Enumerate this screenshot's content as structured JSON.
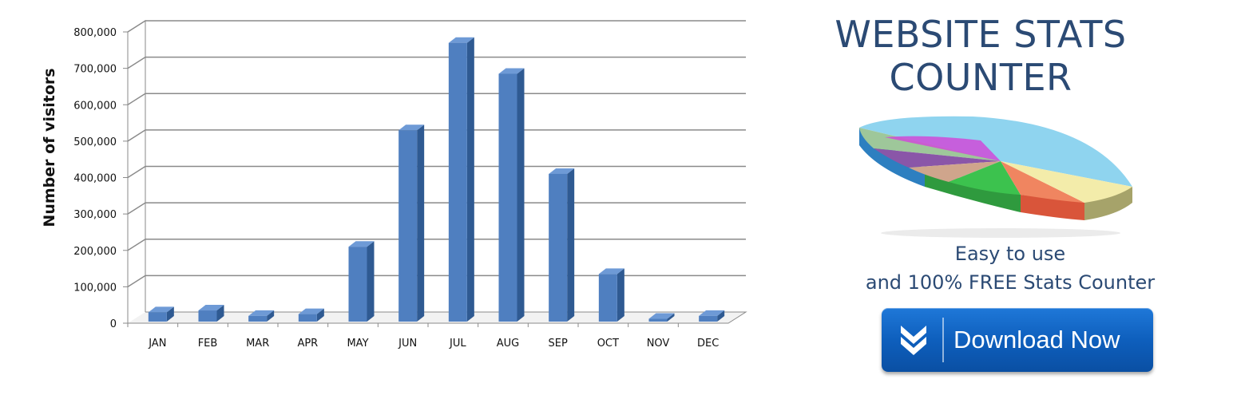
{
  "colors": {
    "bar_front": "#4f7fc0",
    "bar_side": "#2f5a92",
    "bar_top": "#6e9ad6",
    "grid": "#8a8a8a",
    "promo_text": "#2b4a74",
    "button": "#0e5fbd"
  },
  "chart_data": {
    "type": "bar",
    "style": "3d-column",
    "categories": [
      "JAN",
      "FEB",
      "MAR",
      "APR",
      "MAY",
      "JUN",
      "JUL",
      "AUG",
      "SEP",
      "OCT",
      "NOV",
      "DEC"
    ],
    "values": [
      30000,
      35000,
      20000,
      25000,
      210000,
      530000,
      770000,
      685000,
      410000,
      135000,
      12000,
      20000
    ],
    "ylabel": "Number of visitors",
    "xlabel": "",
    "ylim": [
      0,
      800000
    ],
    "yticks": [
      0,
      100000,
      200000,
      300000,
      400000,
      500000,
      600000,
      700000,
      800000
    ],
    "ytick_labels": [
      "0",
      "100,000",
      "200,000",
      "300,000",
      "400,000",
      "500,000",
      "600,000",
      "700,000",
      "800,000"
    ],
    "grid": true,
    "legend": "none"
  },
  "promo": {
    "title_line1": "WEBSITE STATS",
    "title_line2": "COUNTER",
    "tagline_line1": "Easy to use",
    "tagline_line2": "and 100% FREE Stats Counter",
    "button_label": "Download Now",
    "button_icon": "double-chevron-down-icon",
    "illustration": "3d-pie-chart-icon"
  }
}
